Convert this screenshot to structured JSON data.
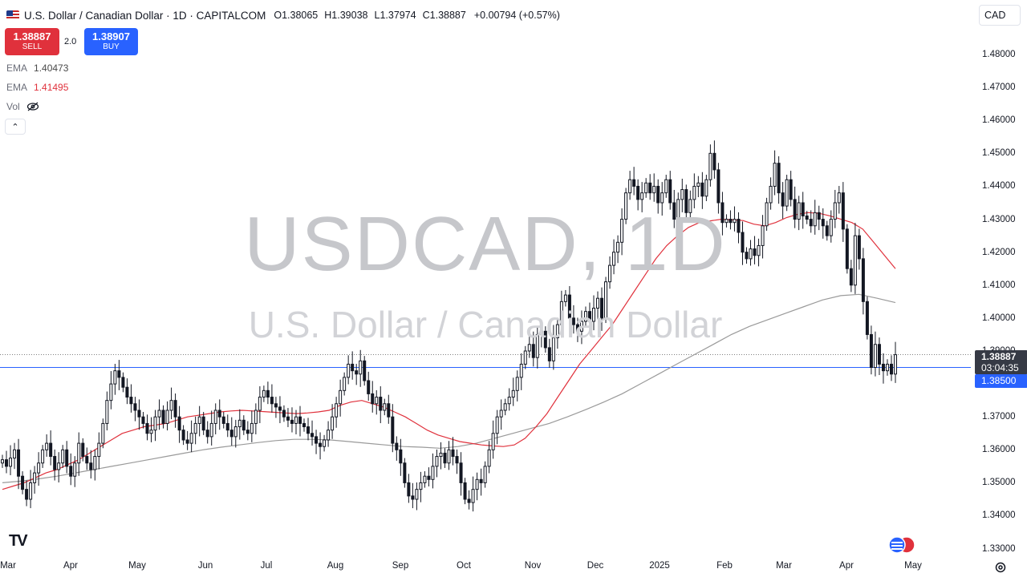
{
  "header": {
    "symbol_title": "U.S. Dollar / Canadian Dollar · 1D · CAPITALCOM",
    "ohlc": [
      {
        "label": "O",
        "value": "1.38065"
      },
      {
        "label": "H",
        "value": "1.39038"
      },
      {
        "label": "L",
        "value": "1.37974"
      },
      {
        "label": "C",
        "value": "1.38887"
      }
    ],
    "change": "+0.00794 (+0.57%)",
    "currency": "CAD"
  },
  "trade": {
    "sell_price": "1.38887",
    "sell_label": "SELL",
    "spread": "2.0",
    "buy_price": "1.38907",
    "buy_label": "BUY"
  },
  "indicators": {
    "ema1_label": "EMA",
    "ema1_value": "1.40473",
    "ema2_label": "EMA",
    "ema2_value": "1.41495",
    "vol_label": "Vol",
    "collapse_glyph": "⌃"
  },
  "watermark": {
    "line1": "USDCAD, 1D",
    "line2": "U.S. Dollar / Canadian Dollar"
  },
  "price_axis": {
    "ticks": [
      "1.48000",
      "1.47000",
      "1.46000",
      "1.45000",
      "1.44000",
      "1.43000",
      "1.42000",
      "1.41000",
      "1.40000",
      "1.39000",
      "1.38000",
      "1.37000",
      "1.36000",
      "1.35000",
      "1.34000",
      "1.33000"
    ],
    "last_price": "1.38887",
    "countdown": "03:04:35",
    "line_price": "1.38500"
  },
  "time_axis": {
    "labels": [
      "Mar",
      "Apr",
      "May",
      "Jun",
      "Jul",
      "Aug",
      "Sep",
      "Oct",
      "Nov",
      "Dec",
      "2025",
      "Feb",
      "Mar",
      "Apr",
      "May"
    ]
  },
  "branding": {
    "logo_text": "TV"
  },
  "colors": {
    "up": "#131722",
    "down": "#131722",
    "ema_fast": "#e0313c",
    "ema_slow": "#9a9a9a",
    "hline": "#2962ff",
    "last_price_bg": "#363a45",
    "line_price_bg": "#2962ff"
  },
  "icons": {
    "flag": "us-ca-flag-icon",
    "visibility": "eye-off-icon",
    "events": "economic-events-icon",
    "settings": "gear-icon"
  },
  "chart_data": {
    "type": "candlestick",
    "y_scale": {
      "min": 1.33,
      "max": 1.48
    },
    "horizontal_line": 1.385,
    "last_close": 1.38887,
    "closes": [
      1.357,
      1.355,
      1.3575,
      1.36,
      1.352,
      1.348,
      1.345,
      1.35,
      1.353,
      1.356,
      1.36,
      1.362,
      1.358,
      1.354,
      1.356,
      1.36,
      1.355,
      1.352,
      1.356,
      1.362,
      1.358,
      1.356,
      1.354,
      1.358,
      1.362,
      1.368,
      1.375,
      1.38,
      1.384,
      1.382,
      1.379,
      1.376,
      1.374,
      1.372,
      1.37,
      1.368,
      1.365,
      1.366,
      1.37,
      1.372,
      1.368,
      1.372,
      1.375,
      1.37,
      1.366,
      1.363,
      1.362,
      1.365,
      1.368,
      1.37,
      1.366,
      1.364,
      1.368,
      1.372,
      1.37,
      1.368,
      1.366,
      1.364,
      1.367,
      1.369,
      1.366,
      1.365,
      1.368,
      1.372,
      1.376,
      1.378,
      1.376,
      1.374,
      1.373,
      1.372,
      1.37,
      1.369,
      1.368,
      1.37,
      1.368,
      1.367,
      1.365,
      1.364,
      1.362,
      1.361,
      1.363,
      1.366,
      1.37,
      1.374,
      1.378,
      1.382,
      1.386,
      1.384,
      1.383,
      1.387,
      1.381,
      1.377,
      1.374,
      1.376,
      1.372,
      1.374,
      1.37,
      1.362,
      1.36,
      1.356,
      1.35,
      1.346,
      1.345,
      1.348,
      1.35,
      1.352,
      1.351,
      1.355,
      1.358,
      1.359,
      1.356,
      1.36,
      1.358,
      1.356,
      1.35,
      1.345,
      1.344,
      1.348,
      1.351,
      1.35,
      1.355,
      1.36,
      1.365,
      1.37,
      1.372,
      1.374,
      1.376,
      1.378,
      1.382,
      1.386,
      1.39,
      1.392,
      1.388,
      1.395,
      1.396,
      1.391,
      1.387,
      1.394,
      1.398,
      1.405,
      1.407,
      1.4,
      1.398,
      1.396,
      1.399,
      1.402,
      1.399,
      1.403,
      1.406,
      1.4,
      1.411,
      1.416,
      1.42,
      1.423,
      1.43,
      1.438,
      1.442,
      1.44,
      1.436,
      1.438,
      1.441,
      1.438,
      1.44,
      1.435,
      1.438,
      1.442,
      1.435,
      1.43,
      1.436,
      1.439,
      1.432,
      1.436,
      1.44,
      1.441,
      1.437,
      1.442,
      1.45,
      1.445,
      1.435,
      1.429,
      1.43,
      1.429,
      1.43,
      1.426,
      1.42,
      1.418,
      1.421,
      1.419,
      1.422,
      1.428,
      1.435,
      1.44,
      1.447,
      1.438,
      1.434,
      1.442,
      1.436,
      1.43,
      1.435,
      1.431,
      1.43,
      1.428,
      1.432,
      1.43,
      1.428,
      1.425,
      1.43,
      1.435,
      1.438,
      1.427,
      1.415,
      1.41,
      1.425,
      1.418,
      1.405,
      1.395,
      1.385,
      1.392,
      1.386,
      1.384,
      1.386,
      1.383,
      1.38887
    ],
    "ema_fast": [
      1.348,
      1.349,
      1.35,
      1.3515,
      1.353,
      1.354,
      1.3555,
      1.357,
      1.359,
      1.361,
      1.363,
      1.365,
      1.366,
      1.367,
      1.3675,
      1.368,
      1.369,
      1.37,
      1.3705,
      1.371,
      1.3715,
      1.3718,
      1.372,
      1.3718,
      1.3716,
      1.3714,
      1.3712,
      1.371,
      1.3712,
      1.3715,
      1.372,
      1.3735,
      1.3745,
      1.375,
      1.374,
      1.373,
      1.3715,
      1.37,
      1.368,
      1.366,
      1.3645,
      1.3635,
      1.3625,
      1.362,
      1.3615,
      1.3612,
      1.361,
      1.3615,
      1.3635,
      1.367,
      1.371,
      1.376,
      1.381,
      1.386,
      1.39,
      1.394,
      1.398,
      1.403,
      1.408,
      1.413,
      1.418,
      1.422,
      1.425,
      1.4275,
      1.429,
      1.4295,
      1.43,
      1.4298,
      1.4296,
      1.4285,
      1.428,
      1.429,
      1.4305,
      1.4315,
      1.432,
      1.4318,
      1.431,
      1.43,
      1.429,
      1.427,
      1.423,
      1.419,
      1.415
    ],
    "ema_slow": [
      1.35,
      1.3505,
      1.3512,
      1.352,
      1.353,
      1.354,
      1.355,
      1.356,
      1.357,
      1.358,
      1.359,
      1.36,
      1.3608,
      1.3615,
      1.3622,
      1.3628,
      1.3632,
      1.3632,
      1.363,
      1.3625,
      1.362,
      1.3615,
      1.361,
      1.3608,
      1.3605,
      1.361,
      1.362,
      1.3635,
      1.365,
      1.3665,
      1.368,
      1.37,
      1.3722,
      1.3745,
      1.377,
      1.38,
      1.383,
      1.386,
      1.389,
      1.392,
      1.395,
      1.3975,
      1.3995,
      1.4015,
      1.4035,
      1.4055,
      1.4068,
      1.4072,
      1.406,
      1.4047
    ]
  }
}
